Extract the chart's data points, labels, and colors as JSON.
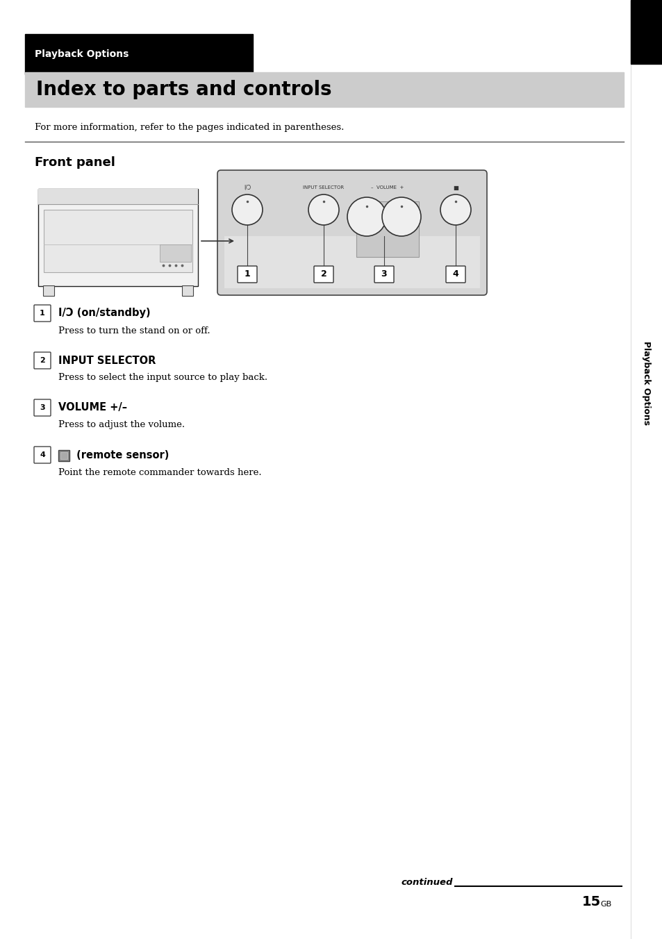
{
  "page_bg": "#ffffff",
  "header_black_box_color": "#000000",
  "header_label": "Playback Options",
  "header_label_color": "#ffffff",
  "title_bar_bg": "#cccccc",
  "title_text": "Index to parts and controls",
  "title_text_color": "#000000",
  "subtitle": "Front panel",
  "info_text": "For more information, refer to the pages indicated in parentheses.",
  "item1_num": "1",
  "item1_label": "I/Ɔ (on/standby)",
  "item1_desc": "Press to turn the stand on or off.",
  "item2_num": "2",
  "item2_label": "INPUT SELECTOR",
  "item2_desc": "Press to select the input source to play back.",
  "item3_num": "3",
  "item3_label": "VOLUME +/–",
  "item3_desc": "Press to adjust the volume.",
  "item4_num": "4",
  "item4_label": " (remote sensor)",
  "item4_desc": "Point the remote commander towards here.",
  "continued_text": "continued",
  "page_number": "15",
  "page_suffix": "GB",
  "sidebar_text": "Playback Options"
}
